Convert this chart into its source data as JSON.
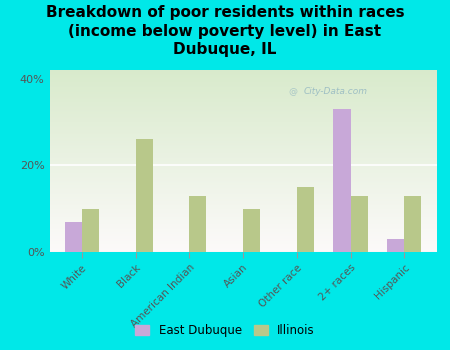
{
  "title": "Breakdown of poor residents within races\n(income below poverty level) in East\nDubuque, IL",
  "categories": [
    "White",
    "Black",
    "American Indian",
    "Asian",
    "Other race",
    "2+ races",
    "Hispanic"
  ],
  "east_dubuque": [
    7,
    0,
    0,
    0,
    0,
    33,
    3
  ],
  "illinois": [
    10,
    26,
    13,
    10,
    15,
    13,
    13
  ],
  "color_east": "#c8a8d8",
  "color_illinois": "#b8c88a",
  "background_outer": "#00e8e8",
  "ylim": [
    0,
    42
  ],
  "yticks": [
    0,
    20,
    40
  ],
  "ytick_labels": [
    "0%",
    "20%",
    "40%"
  ],
  "watermark": "City-Data.com",
  "legend_east": "East Dubuque",
  "legend_illinois": "Illinois",
  "bar_width": 0.32,
  "title_fontsize": 11,
  "tick_fontsize": 7.5
}
